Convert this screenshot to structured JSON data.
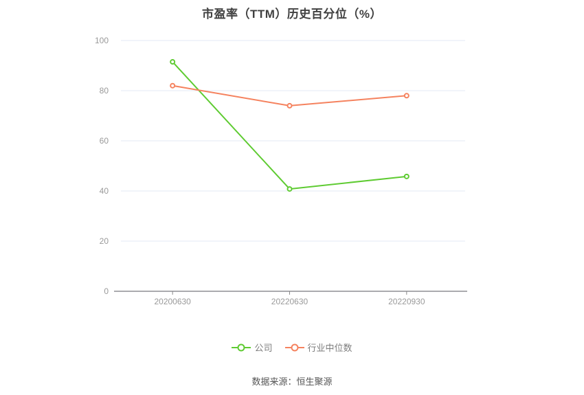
{
  "title": "市盈率（TTM）历史百分位（%）",
  "footer": "数据来源：恒生聚源",
  "style_colors": {
    "company_line": "#5ecb31",
    "industry_line": "#f5825e",
    "gridline": "#e3e9f4",
    "axis_line": "#55565e",
    "tick_label": "#999999",
    "title_text": "#404040",
    "legend_text": "#7d7d7d",
    "footer_text": "#555555"
  },
  "chart_data": {
    "type": "line",
    "categories": [
      "20200630",
      "20220630",
      "20220930"
    ],
    "series": [
      {
        "name": "公司",
        "color": "#5ecb31",
        "values": [
          91.5,
          40.8,
          45.8
        ]
      },
      {
        "name": "行业中位数",
        "color": "#f5825e",
        "values": [
          82,
          74,
          78
        ]
      }
    ],
    "title": "市盈率（TTM）历史百分位（%）",
    "xlabel": "",
    "ylabel": "",
    "ylim": [
      0,
      100
    ],
    "y_ticks": [
      0,
      20,
      40,
      60,
      80,
      100
    ],
    "grid": true,
    "legend_position": "bottom",
    "marker": "open-circle"
  }
}
